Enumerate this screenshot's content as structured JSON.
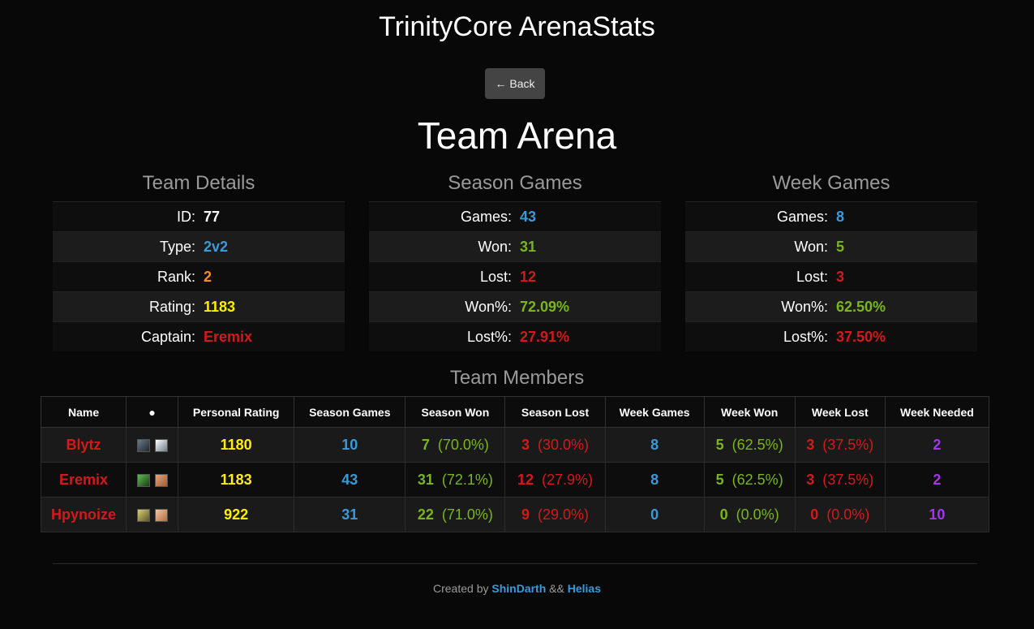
{
  "site_title": "TrinityCore ArenaStats",
  "back_label": "← Back",
  "page_title": "Team Arena",
  "team_details": {
    "heading": "Team Details",
    "rows": [
      {
        "label": "ID:",
        "value": "77",
        "color": "#ffffff"
      },
      {
        "label": "Type:",
        "value": "2v2",
        "color": "#3a9ad9"
      },
      {
        "label": "Rank:",
        "value": "2",
        "color": "#ff8c1a"
      },
      {
        "label": "Rating:",
        "value": "1183",
        "color": "#ffee00"
      },
      {
        "label": "Captain:",
        "value": "Eremix",
        "color": "#d11a1a"
      }
    ]
  },
  "season_games": {
    "heading": "Season Games",
    "rows": [
      {
        "label": "Games:",
        "value": "43",
        "color": "#3a9ad9"
      },
      {
        "label": "Won:",
        "value": "31",
        "color": "#7ab51d"
      },
      {
        "label": "Lost:",
        "value": "12",
        "color": "#d11a1a"
      },
      {
        "label": "Won%:",
        "value": "72.09%",
        "color": "#7ab51d"
      },
      {
        "label": "Lost%:",
        "value": "27.91%",
        "color": "#d11a1a"
      }
    ]
  },
  "week_games": {
    "heading": "Week Games",
    "rows": [
      {
        "label": "Games:",
        "value": "8",
        "color": "#3a9ad9"
      },
      {
        "label": "Won:",
        "value": "5",
        "color": "#7ab51d"
      },
      {
        "label": "Lost:",
        "value": "3",
        "color": "#d11a1a"
      },
      {
        "label": "Won%:",
        "value": "62.50%",
        "color": "#7ab51d"
      },
      {
        "label": "Lost%:",
        "value": "37.50%",
        "color": "#d11a1a"
      }
    ]
  },
  "members": {
    "heading": "Team Members",
    "columns": [
      "Name",
      "●",
      "Personal Rating",
      "Season Games",
      "Season Won",
      "Season Lost",
      "Week Games",
      "Week Won",
      "Week Lost",
      "Week Needed"
    ],
    "rows": [
      {
        "name": "Blytz",
        "race_icon": "undead-race-icon",
        "class_icon": "priest-class-icon",
        "rating": "1180",
        "season_games": "10",
        "season_won": "7",
        "season_won_pct": "(70.0%)",
        "season_lost": "3",
        "season_lost_pct": "(30.0%)",
        "week_games": "8",
        "week_won": "5",
        "week_won_pct": "(62.5%)",
        "week_lost": "3",
        "week_lost_pct": "(37.5%)",
        "week_needed": "2"
      },
      {
        "name": "Eremix",
        "race_icon": "rogue-class-icon",
        "class_icon": "human-race-icon",
        "rating": "1183",
        "season_games": "43",
        "season_won": "31",
        "season_won_pct": "(72.1%)",
        "season_lost": "12",
        "season_lost_pct": "(27.9%)",
        "week_games": "8",
        "week_won": "5",
        "week_won_pct": "(62.5%)",
        "week_lost": "3",
        "week_lost_pct": "(37.5%)",
        "week_needed": "2"
      },
      {
        "name": "Hpynoize",
        "race_icon": "paladin-class-icon",
        "class_icon": "mage-class-icon",
        "rating": "922",
        "season_games": "31",
        "season_won": "22",
        "season_won_pct": "(71.0%)",
        "season_lost": "9",
        "season_lost_pct": "(29.0%)",
        "week_games": "0",
        "week_won": "0",
        "week_won_pct": "(0.0%)",
        "week_lost": "0",
        "week_lost_pct": "(0.0%)",
        "week_needed": "10"
      }
    ]
  },
  "footer": {
    "prefix": "Created by",
    "author1": "ShinDarth",
    "separator": "&&",
    "author2": "Helias"
  },
  "colors": {
    "background": "#080808",
    "heading_grey": "#9a9a9a",
    "blue": "#3a9ad9",
    "green": "#7ab51d",
    "red": "#d11a1a",
    "yellow": "#ffee00",
    "orange": "#ff8c1a",
    "purple": "#a335ee"
  }
}
